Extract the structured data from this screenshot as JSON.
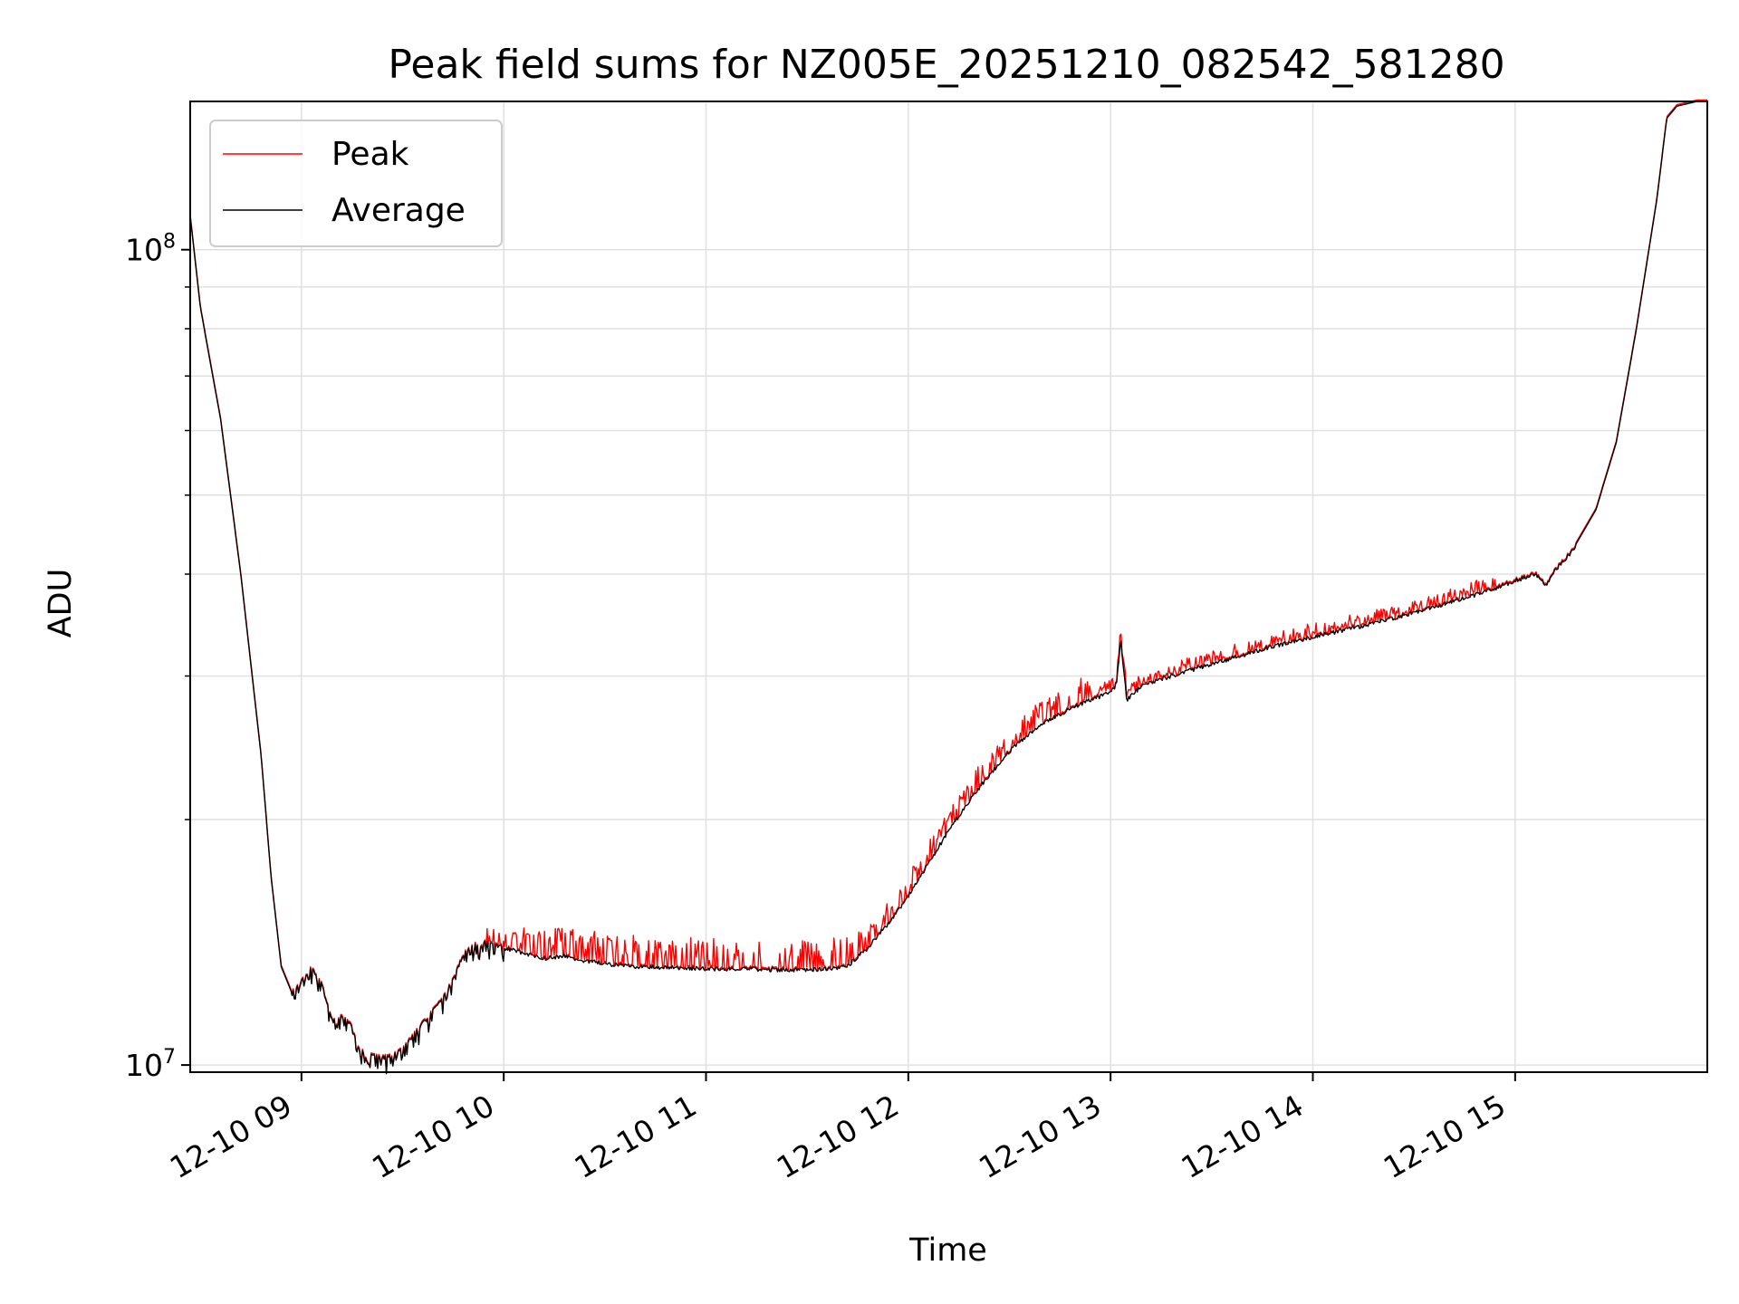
{
  "chart_data": {
    "type": "line",
    "title": "Peak field sums for NZ005E_20251210_082542_581280",
    "xlabel": "Time",
    "ylabel": "ADU",
    "yscale": "log",
    "grid": true,
    "legend_position": "top-left",
    "xlim": [
      8.45,
      15.95
    ],
    "ylim": [
      9800000,
      152000000
    ],
    "x_ticks": [
      9,
      10,
      11,
      12,
      13,
      14,
      15
    ],
    "x_tick_labels": [
      "12-10 09",
      "12-10 10",
      "12-10 11",
      "12-10 12",
      "12-10 13",
      "12-10 14",
      "12-10 15"
    ],
    "y_ticks": [
      10000000,
      100000000
    ],
    "y_tick_labels": [
      {
        "base": "10",
        "exp": "7"
      },
      {
        "base": "10",
        "exp": "8"
      }
    ],
    "y_minor_ticks": [
      20000000,
      30000000,
      40000000,
      50000000,
      60000000,
      70000000,
      80000000,
      90000000
    ],
    "series": [
      {
        "name": "Peak",
        "color": "#ff0000",
        "role": "peak"
      },
      {
        "name": "Average",
        "color": "#000000",
        "role": "average"
      }
    ],
    "x": [
      8.45,
      8.5,
      8.6,
      8.7,
      8.8,
      8.85,
      8.9,
      8.95,
      9.0,
      9.05,
      9.1,
      9.15,
      9.2,
      9.25,
      9.3,
      9.35,
      9.4,
      9.45,
      9.5,
      9.55,
      9.6,
      9.65,
      9.7,
      9.75,
      9.8,
      9.85,
      9.9,
      10.0,
      10.1,
      10.2,
      10.3,
      10.4,
      10.6,
      10.8,
      11.0,
      11.2,
      11.4,
      11.5,
      11.6,
      11.7,
      11.8,
      11.9,
      12.0,
      12.1,
      12.2,
      12.3,
      12.4,
      12.5,
      12.6,
      12.7,
      12.8,
      12.9,
      13.0,
      13.03,
      13.05,
      13.08,
      13.15,
      13.3,
      13.5,
      13.8,
      14.0,
      14.3,
      14.6,
      14.9,
      15.0,
      15.1,
      15.15,
      15.2,
      15.3,
      15.4,
      15.5,
      15.6,
      15.7,
      15.75,
      15.8,
      15.9,
      15.95
    ],
    "average": [
      110000000,
      85000000,
      62000000,
      40000000,
      24000000,
      17000000,
      13200000,
      12300000,
      12700000,
      13200000,
      12600000,
      11400000,
      11500000,
      11200000,
      10500000,
      10300000,
      10250000,
      10300000,
      10500000,
      10900000,
      11300000,
      11700000,
      12100000,
      12800000,
      13700000,
      14100000,
      14200000,
      14000000,
      13800000,
      13600000,
      13700000,
      13500000,
      13300000,
      13250000,
      13200000,
      13200000,
      13150000,
      13150000,
      13200000,
      13300000,
      14000000,
      15000000,
      16200000,
      17800000,
      19500000,
      21200000,
      22800000,
      24400000,
      25700000,
      26700000,
      27500000,
      28200000,
      28800000,
      29500000,
      33500000,
      28200000,
      29300000,
      30200000,
      31200000,
      32800000,
      33700000,
      35000000,
      36700000,
      38600000,
      39500000,
      40300000,
      39000000,
      40700000,
      43500000,
      48000000,
      58000000,
      80000000,
      115000000,
      145000000,
      150000000,
      152000000,
      152000000
    ],
    "peak_spike_ranges": [
      [
        9.9,
        11.7,
        0.09
      ],
      [
        11.7,
        12.9,
        0.07
      ],
      [
        12.9,
        14.9,
        0.035
      ]
    ]
  }
}
